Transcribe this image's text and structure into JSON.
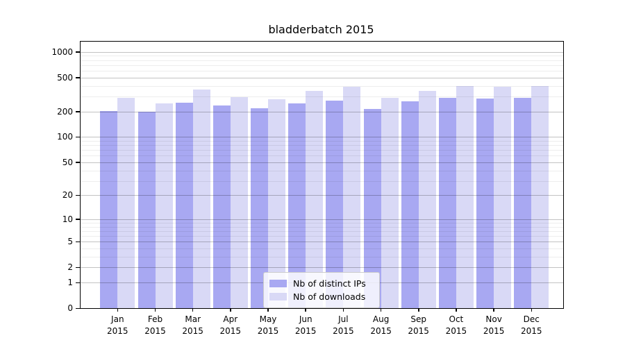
{
  "chart_data": {
    "type": "bar",
    "title": "bladderbatch 2015",
    "categories": [
      "Jan 2015",
      "Feb 2015",
      "Mar 2015",
      "Apr 2015",
      "May 2015",
      "Jun 2015",
      "Jul 2015",
      "Aug 2015",
      "Sep 2015",
      "Oct 2015",
      "Nov 2015",
      "Dec 2015"
    ],
    "x_tick_months": [
      "Jan",
      "Feb",
      "Mar",
      "Apr",
      "May",
      "Jun",
      "Jul",
      "Aug",
      "Sep",
      "Oct",
      "Nov",
      "Dec"
    ],
    "x_tick_year": "2015",
    "series": [
      {
        "name": "Nb of distinct IPs",
        "color": "#a8a8f2",
        "values": [
          203,
          199,
          253,
          235,
          219,
          250,
          266,
          216,
          265,
          287,
          286,
          291
        ]
      },
      {
        "name": "Nb of downloads",
        "color": "#d9d9f6",
        "values": [
          291,
          251,
          359,
          293,
          278,
          350,
          391,
          290,
          351,
          398,
          388,
          395
        ]
      }
    ],
    "yscale": "log1p",
    "ylabel": "",
    "xlabel": "",
    "yticks": [
      1000,
      500,
      200,
      100,
      50,
      20,
      10,
      5,
      2,
      1,
      0
    ],
    "minor_gridlines": [
      3,
      4,
      6,
      7,
      8,
      9,
      30,
      40,
      60,
      70,
      80,
      90,
      300,
      400,
      600,
      700,
      800,
      900
    ],
    "ylim": [
      0,
      1318
    ],
    "grid": true,
    "legend_position": "lower center",
    "colors": {
      "major_grid": "rgba(0,0,0,0.24)",
      "minor_grid": "rgba(0,0,0,0.07)",
      "spine": "#000000",
      "background": "#ffffff"
    }
  }
}
